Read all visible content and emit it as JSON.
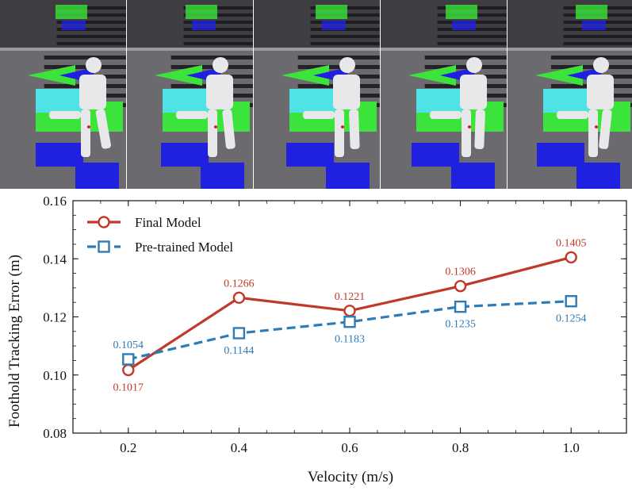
{
  "colors": {
    "final": "#c0392b",
    "pretrained": "#2f7bb6",
    "sim_floor_dark": "#3e3e42",
    "sim_floor_light": "#6b6b6f",
    "cyan_cells": "#4fe3e6",
    "green_cells": "#3be33b",
    "blue_cells": "#2020e0",
    "robot": "#e8e8ea"
  },
  "panels": [
    {
      "name": "sim-frame-1"
    },
    {
      "name": "sim-frame-2"
    },
    {
      "name": "sim-frame-3"
    },
    {
      "name": "sim-frame-4"
    },
    {
      "name": "sim-frame-5"
    }
  ],
  "chart_data": {
    "type": "line",
    "title": "",
    "xlabel": "Velocity (m/s)",
    "ylabel": "Foothold Tracking Error (m)",
    "x": [
      0.2,
      0.4,
      0.6,
      0.8,
      1.0
    ],
    "x_tick_labels": [
      "0.2",
      "0.4",
      "0.6",
      "0.8",
      "1.0"
    ],
    "y_tick_labels": [
      "0.08",
      "0.10",
      "0.12",
      "0.14",
      "0.16"
    ],
    "y_ticks": [
      0.08,
      0.1,
      0.12,
      0.14,
      0.16
    ],
    "xlim": [
      0.1,
      1.1
    ],
    "ylim": [
      0.08,
      0.16
    ],
    "grid": false,
    "legend_position": "top-left",
    "series": [
      {
        "name": "Final Model",
        "marker": "circle",
        "line_style": "solid",
        "color": "#c0392b",
        "values": [
          0.1017,
          0.1266,
          0.1221,
          0.1306,
          0.1405
        ],
        "labels": [
          "0.1017",
          "0.1266",
          "0.1221",
          "0.1306",
          "0.1405"
        ],
        "label_positions": [
          "below",
          "above",
          "above",
          "above",
          "above"
        ]
      },
      {
        "name": "Pre-trained Model",
        "marker": "square",
        "line_style": "dashed",
        "color": "#2f7bb6",
        "values": [
          0.1054,
          0.1144,
          0.1183,
          0.1235,
          0.1254
        ],
        "labels": [
          "0.1054",
          "0.1144",
          "0.1183",
          "0.1235",
          "0.1254"
        ],
        "label_positions": [
          "above",
          "below",
          "below",
          "below",
          "below"
        ]
      }
    ]
  }
}
